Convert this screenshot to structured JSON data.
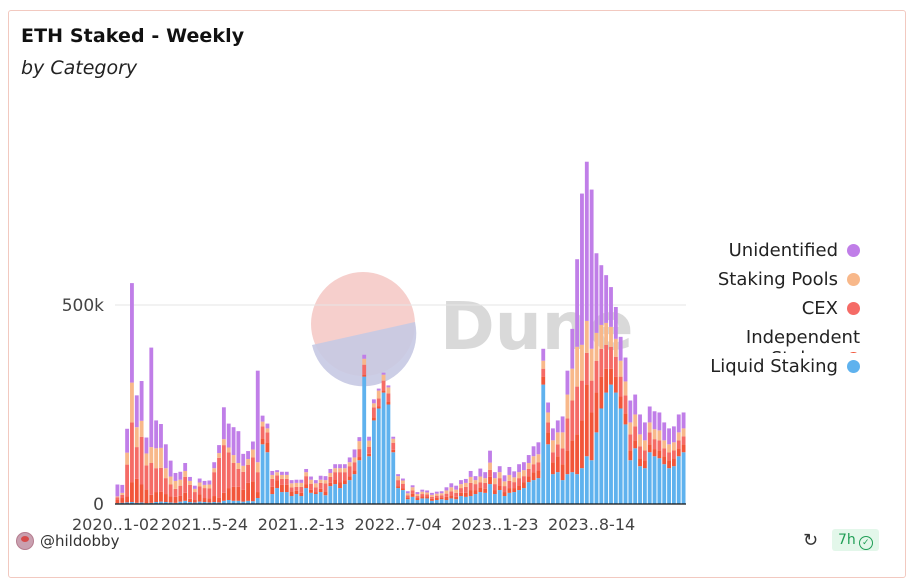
{
  "title": "ETH Staked - Weekly",
  "subtitle": "by Category",
  "footer": {
    "username": "@hildobby",
    "age": "7h"
  },
  "watermark": "Dune",
  "chart_data": {
    "type": "bar",
    "stacked": true,
    "ylim": [
      0,
      1000000
    ],
    "y_ticks": [
      {
        "value": 0,
        "label": "0"
      },
      {
        "value": 500000,
        "label": "500k"
      }
    ],
    "x_ticks": [
      {
        "index": 0,
        "label": "2020..1-02"
      },
      {
        "index": 18,
        "label": "2021..5-24"
      },
      {
        "index": 38,
        "label": "2021..2-13"
      },
      {
        "index": 58,
        "label": "2022..7-04"
      },
      {
        "index": 78,
        "label": "2023..1-23"
      },
      {
        "index": 98,
        "label": "2023..8-14"
      }
    ],
    "legend": [
      {
        "name": "Unidentified",
        "color": "#c07ee8"
      },
      {
        "name": "Staking Pools",
        "color": "#f8b88a"
      },
      {
        "name": "CEX",
        "color": "#f56b66"
      },
      {
        "name": "Independent Stakers",
        "color": "#f2563a"
      },
      {
        "name": "Liquid Staking",
        "color": "#5fb2ee"
      }
    ],
    "legend_position": "right",
    "series": [
      {
        "name": "Liquid Staking",
        "color": "#5fb2ee",
        "values": [
          2000,
          3000,
          4000,
          5000,
          3000,
          4000,
          2000,
          3000,
          5000,
          6000,
          5000,
          4000,
          3000,
          6000,
          8000,
          5000,
          4000,
          6000,
          5000,
          4000,
          5000,
          4000,
          8000,
          10000,
          8000,
          8000,
          6000,
          8000,
          7000,
          15000,
          150000,
          130000,
          25000,
          40000,
          30000,
          30000,
          20000,
          25000,
          20000,
          40000,
          28000,
          25000,
          30000,
          22000,
          45000,
          50000,
          40000,
          50000,
          60000,
          75000,
          110000,
          320000,
          120000,
          210000,
          240000,
          280000,
          250000,
          130000,
          40000,
          35000,
          12000,
          18000,
          10000,
          14000,
          14000,
          8000,
          10000,
          12000,
          10000,
          14000,
          12000,
          20000,
          18000,
          20000,
          25000,
          30000,
          28000,
          50000,
          25000,
          35000,
          20000,
          28000,
          30000,
          35000,
          40000,
          55000,
          60000,
          65000,
          300000,
          150000,
          75000,
          80000,
          60000,
          75000,
          80000,
          75000,
          90000,
          120000,
          110000,
          180000,
          240000,
          280000,
          300000,
          280000,
          240000,
          200000,
          110000,
          140000,
          95000,
          90000,
          130000,
          120000,
          115000,
          100000,
          90000,
          95000,
          120000,
          130000
        ]
      },
      {
        "name": "Independent Stakers",
        "color": "#f2563a",
        "values": [
          10000,
          12000,
          15000,
          50000,
          60000,
          45000,
          35000,
          20000,
          25000,
          25000,
          20000,
          15000,
          15000,
          15000,
          20000,
          8000,
          6000,
          18000,
          10000,
          10000,
          15000,
          12000,
          20000,
          30000,
          35000,
          35000,
          30000,
          45000,
          50000,
          15000,
          15000,
          25000,
          18000,
          20000,
          18000,
          18000,
          12000,
          8000,
          8000,
          10000,
          8000,
          5000,
          8000,
          10000,
          8000,
          12000,
          15000,
          10000,
          10000,
          10000,
          8000,
          5000,
          6000,
          8000,
          5000,
          5000,
          8000,
          6000,
          5000,
          4000,
          5000,
          8000,
          5000,
          5000,
          5000,
          5000,
          6000,
          5000,
          8000,
          8000,
          6000,
          8000,
          10000,
          15000,
          10000,
          12000,
          10000,
          18000,
          10000,
          12000,
          10000,
          12000,
          10000,
          12000,
          15000,
          15000,
          20000,
          20000,
          20000,
          30000,
          30000,
          40000,
          40000,
          60000,
          80000,
          100000,
          120000,
          180000,
          120000,
          100000,
          80000,
          60000,
          40000,
          40000,
          30000,
          28000,
          25000,
          20000,
          20000,
          20000,
          20000,
          18000,
          20000,
          20000,
          20000,
          20000,
          20000,
          20000
        ]
      },
      {
        "name": "CEX",
        "color": "#f56b66",
        "values": [
          5000,
          8000,
          80000,
          150000,
          80000,
          120000,
          60000,
          80000,
          60000,
          60000,
          40000,
          30000,
          20000,
          25000,
          40000,
          35000,
          20000,
          20000,
          25000,
          25000,
          60000,
          100000,
          120000,
          90000,
          60000,
          45000,
          45000,
          45000,
          60000,
          50000,
          30000,
          25000,
          20000,
          12000,
          15000,
          15000,
          10000,
          10000,
          15000,
          20000,
          15000,
          12000,
          15000,
          20000,
          15000,
          18000,
          25000,
          20000,
          25000,
          20000,
          20000,
          25000,
          18000,
          25000,
          20000,
          25000,
          20000,
          18000,
          15000,
          12000,
          5000,
          8000,
          5000,
          6000,
          5000,
          5000,
          5000,
          5000,
          8000,
          10000,
          10000,
          12000,
          15000,
          18000,
          15000,
          12000,
          15000,
          18000,
          15000,
          18000,
          15000,
          18000,
          15000,
          18000,
          15000,
          18000,
          20000,
          20000,
          20000,
          25000,
          25000,
          30000,
          40000,
          80000,
          100000,
          120000,
          100000,
          80000,
          80000,
          80000,
          70000,
          60000,
          55000,
          50000,
          50000,
          45000,
          40000,
          35000,
          30000,
          25000,
          30000,
          25000,
          25000,
          20000,
          20000,
          20000,
          20000,
          20000
        ]
      },
      {
        "name": "Staking Pools",
        "color": "#f8b88a",
        "values": [
          2000,
          5000,
          30000,
          100000,
          50000,
          40000,
          30000,
          40000,
          50000,
          50000,
          25000,
          20000,
          20000,
          15000,
          15000,
          10000,
          8000,
          10000,
          8000,
          10000,
          10000,
          12000,
          15000,
          12000,
          20000,
          15000,
          15000,
          15000,
          20000,
          25000,
          12000,
          10000,
          10000,
          8000,
          10000,
          10000,
          10000,
          10000,
          10000,
          10000,
          10000,
          10000,
          8000,
          8000,
          10000,
          10000,
          10000,
          10000,
          10000,
          12000,
          20000,
          15000,
          15000,
          10000,
          20000,
          15000,
          15000,
          10000,
          10000,
          8000,
          5000,
          8000,
          5000,
          6000,
          5000,
          5000,
          5000,
          5000,
          8000,
          10000,
          8000,
          10000,
          10000,
          15000,
          10000,
          15000,
          12000,
          18000,
          15000,
          15000,
          12000,
          15000,
          12000,
          15000,
          15000,
          15000,
          20000,
          20000,
          20000,
          25000,
          30000,
          30000,
          40000,
          60000,
          80000,
          100000,
          90000,
          80000,
          80000,
          70000,
          60000,
          55000,
          50000,
          45000,
          40000,
          35000,
          30000,
          30000,
          30000,
          25000,
          25000,
          25000,
          25000,
          20000,
          20000,
          20000,
          20000,
          20000
        ]
      },
      {
        "name": "Unidentified",
        "color": "#c07ee8",
        "values": [
          30000,
          20000,
          60000,
          250000,
          80000,
          100000,
          40000,
          250000,
          70000,
          60000,
          60000,
          40000,
          20000,
          20000,
          20000,
          10000,
          8000,
          10000,
          10000,
          10000,
          15000,
          20000,
          80000,
          60000,
          70000,
          80000,
          30000,
          20000,
          20000,
          230000,
          15000,
          12000,
          10000,
          5000,
          8000,
          8000,
          8000,
          8000,
          8000,
          8000,
          8000,
          8000,
          10000,
          10000,
          10000,
          10000,
          10000,
          10000,
          12000,
          20000,
          10000,
          10000,
          10000,
          10000,
          5000,
          5000,
          5000,
          5000,
          5000,
          5000,
          5000,
          5000,
          5000,
          5000,
          5000,
          5000,
          5000,
          5000,
          8000,
          10000,
          10000,
          10000,
          10000,
          15000,
          10000,
          20000,
          15000,
          30000,
          15000,
          15000,
          15000,
          20000,
          15000,
          20000,
          20000,
          20000,
          25000,
          30000,
          30000,
          25000,
          30000,
          30000,
          40000,
          60000,
          100000,
          220000,
          380000,
          400000,
          400000,
          200000,
          150000,
          120000,
          100000,
          80000,
          60000,
          60000,
          55000,
          50000,
          50000,
          45000,
          40000,
          45000,
          45000,
          45000,
          40000,
          40000,
          45000,
          40000
        ]
      }
    ]
  }
}
